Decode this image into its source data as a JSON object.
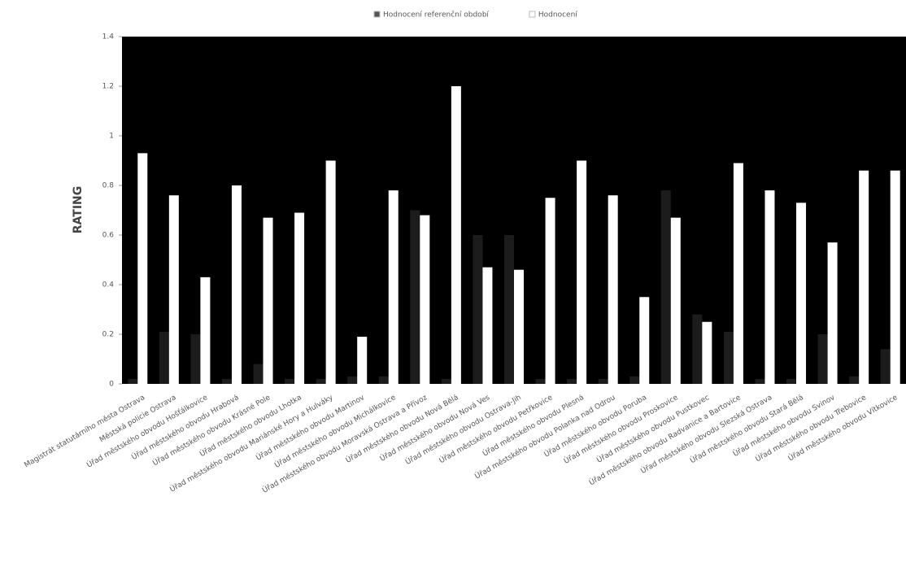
{
  "chart_data": {
    "type": "bar",
    "y_label": "RATING",
    "categories": [
      "Magistrát statutárního města Ostrava",
      "Městská policie Ostrava",
      "Úřad městského obvodu Hošťálkovice",
      "Úřad městského obvodu Hrabová",
      "Úřad městského obvodu Krásné Pole",
      "Úřad městského obvodu Lhotka",
      "Úřad městského obvodu Mariánské Hory a Hulváky",
      "Úřad městského obvodu Martinov",
      "Úřad městského obvodu Michálkovice",
      "Úřad městského obvodu Moravská Ostrava a Přívoz",
      "Úřad městského obvodu Nová Bělá",
      "Úřad městského obvodu Nová Ves",
      "Úřad městského obvodu Ostrava-Jih",
      "Úřad městského obvodu Petřkovice",
      "Úřad městského obvodu Plesná",
      "Úřad městského obvodu Polanka nad Odrou",
      "Úřad městského obvodu Poruba",
      "Úřad městského obvodu Proskovice",
      "Úřad městského obvodu Pustkovec",
      "Úřad městského obvodu Radvanice a Bartovice",
      "Úřad městského obvodu Slezská Ostrava",
      "Úřad městského obvodu Stará Bělá",
      "Úřad městského obvodu Svinov",
      "Úřad městského obvodu Třebovice",
      "Úřad městského obvodu Vítkovice"
    ],
    "series": [
      {
        "name": "Hodnocení referenční období",
        "color": "#1c1c1c",
        "values": [
          0.02,
          0.21,
          0.2,
          0.02,
          0.08,
          0.02,
          0.02,
          0.03,
          0.03,
          0.7,
          0.02,
          0.6,
          0.6,
          0.02,
          0.02,
          0.02,
          0.03,
          0.78,
          0.28,
          0.21,
          0.02,
          0.02,
          0.2,
          0.03,
          0.14
        ]
      },
      {
        "name": "Hodnocení",
        "color": "#ffffff",
        "values": [
          0.93,
          0.76,
          0.43,
          0.8,
          0.67,
          0.69,
          0.9,
          0.19,
          0.78,
          0.68,
          1.2,
          0.47,
          0.46,
          0.75,
          0.9,
          0.76,
          0.35,
          0.67,
          0.25,
          0.89,
          0.78,
          0.73,
          0.57,
          0.86,
          0.86
        ]
      }
    ],
    "ylim": [
      0,
      1.4
    ],
    "yticks": [
      0,
      0.2,
      0.4,
      0.6,
      0.8,
      1,
      1.2,
      1.4
    ],
    "plot_background": "#000000"
  }
}
